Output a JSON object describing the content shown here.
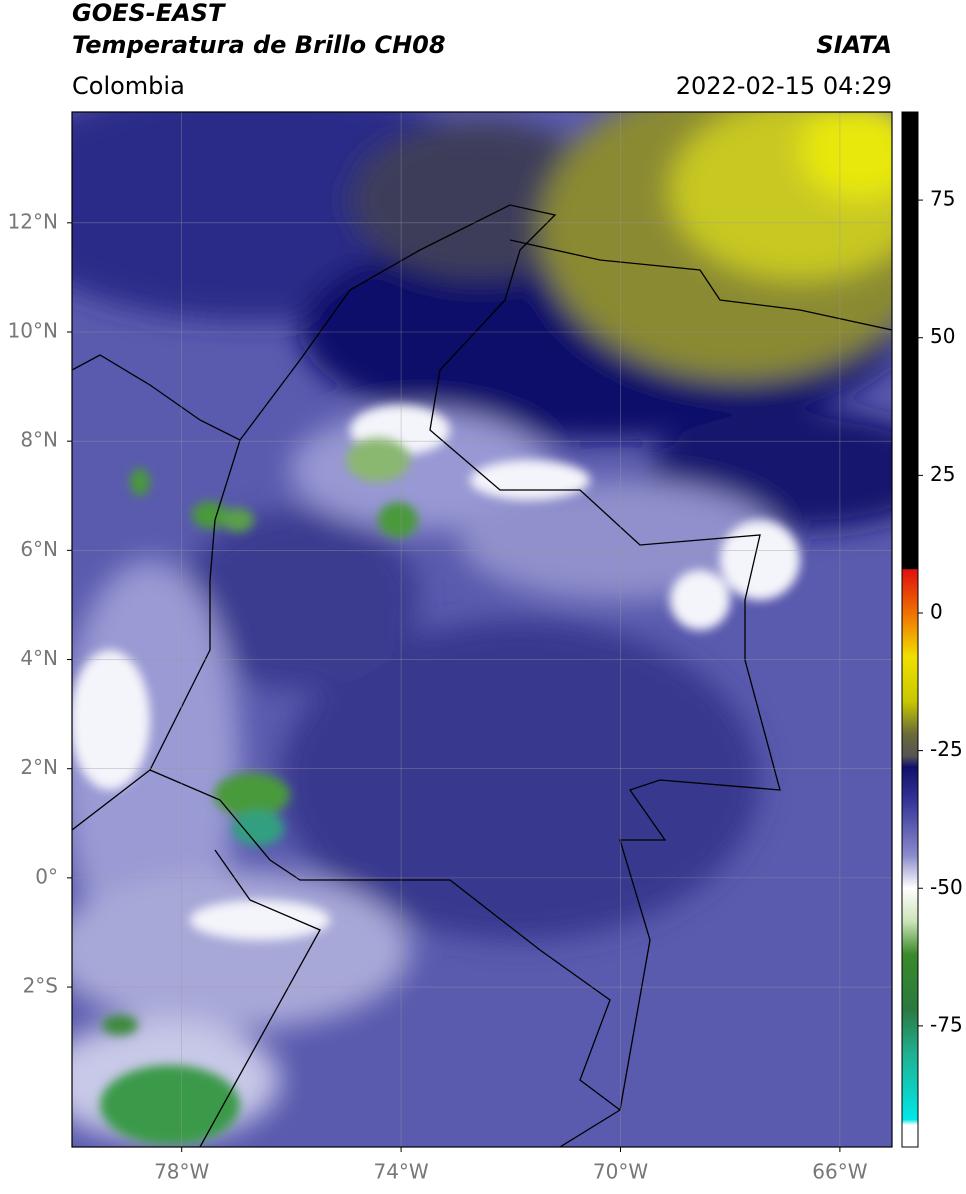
{
  "header": {
    "title_line1": "GOES-EAST",
    "title_line2": "Temperatura de Brillo CH08",
    "source": "SIATA",
    "region": "Colombia",
    "timestamp": "2022-02-15 04:29"
  },
  "map": {
    "lat_range": [
      -4.93,
      14.03
    ],
    "lon_range": [
      -80,
      -65.05
    ],
    "grid": true,
    "lat_ticks": [
      {
        "value": 12,
        "label": "12°N"
      },
      {
        "value": 10,
        "label": "10°N"
      },
      {
        "value": 8,
        "label": "8°N"
      },
      {
        "value": 6,
        "label": "6°N"
      },
      {
        "value": 4,
        "label": "4°N"
      },
      {
        "value": 2,
        "label": "2°N"
      },
      {
        "value": 0,
        "label": "0°"
      },
      {
        "value": -2,
        "label": "2°S"
      }
    ],
    "lon_ticks": [
      {
        "value": -78,
        "label": "78°W"
      },
      {
        "value": -74,
        "label": "74°W"
      },
      {
        "value": -70,
        "label": "70°W"
      },
      {
        "value": -66,
        "label": "66°W"
      }
    ]
  },
  "colorbar": {
    "lim": [
      -97,
      91
    ],
    "ticks": [
      75,
      50,
      25,
      0,
      -25,
      -50,
      -75
    ],
    "stops": [
      {
        "value": 91,
        "color": "#000000"
      },
      {
        "value": 8,
        "color": "#000000"
      },
      {
        "value": 7.9,
        "color": "#e01010"
      },
      {
        "value": 0,
        "color": "#f07000"
      },
      {
        "value": -8,
        "color": "#f0e000"
      },
      {
        "value": -16,
        "color": "#c8c800"
      },
      {
        "value": -22,
        "color": "#6a6a3a"
      },
      {
        "value": -26,
        "color": "#555"
      },
      {
        "value": -28,
        "color": "#10106a"
      },
      {
        "value": -34,
        "color": "#333399"
      },
      {
        "value": -44,
        "color": "#8a8acc"
      },
      {
        "value": -50,
        "color": "#ffffff"
      },
      {
        "value": -56,
        "color": "#cce4b8"
      },
      {
        "value": -62,
        "color": "#3a8a2a"
      },
      {
        "value": -72,
        "color": "#2a7a40"
      },
      {
        "value": -80,
        "color": "#20b090"
      },
      {
        "value": -92,
        "color": "#00e8e8"
      },
      {
        "value": -93,
        "color": "#ffffff"
      },
      {
        "value": -97,
        "color": "#ffffff"
      }
    ]
  }
}
